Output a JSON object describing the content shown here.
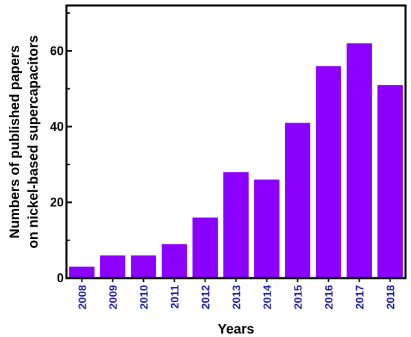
{
  "chart_data": {
    "type": "bar",
    "categories": [
      "2008",
      "2009",
      "2010",
      "2011",
      "2012",
      "2013",
      "2014",
      "2015",
      "2016",
      "2017",
      "2018"
    ],
    "values": [
      3,
      6,
      6,
      9,
      16,
      28,
      26,
      41,
      56,
      62,
      51
    ],
    "xlabel": "Years",
    "ylabel_line1": "Numbers of published papers",
    "ylabel_line2": "on nickel-based supercapacitors",
    "ylim": [
      0,
      72
    ],
    "yticks": [
      0,
      20,
      40,
      60
    ],
    "grid": false,
    "bar_color": "#8b00ff",
    "x_tick_color": "#1a1aa6",
    "axis_color": "#000000"
  }
}
